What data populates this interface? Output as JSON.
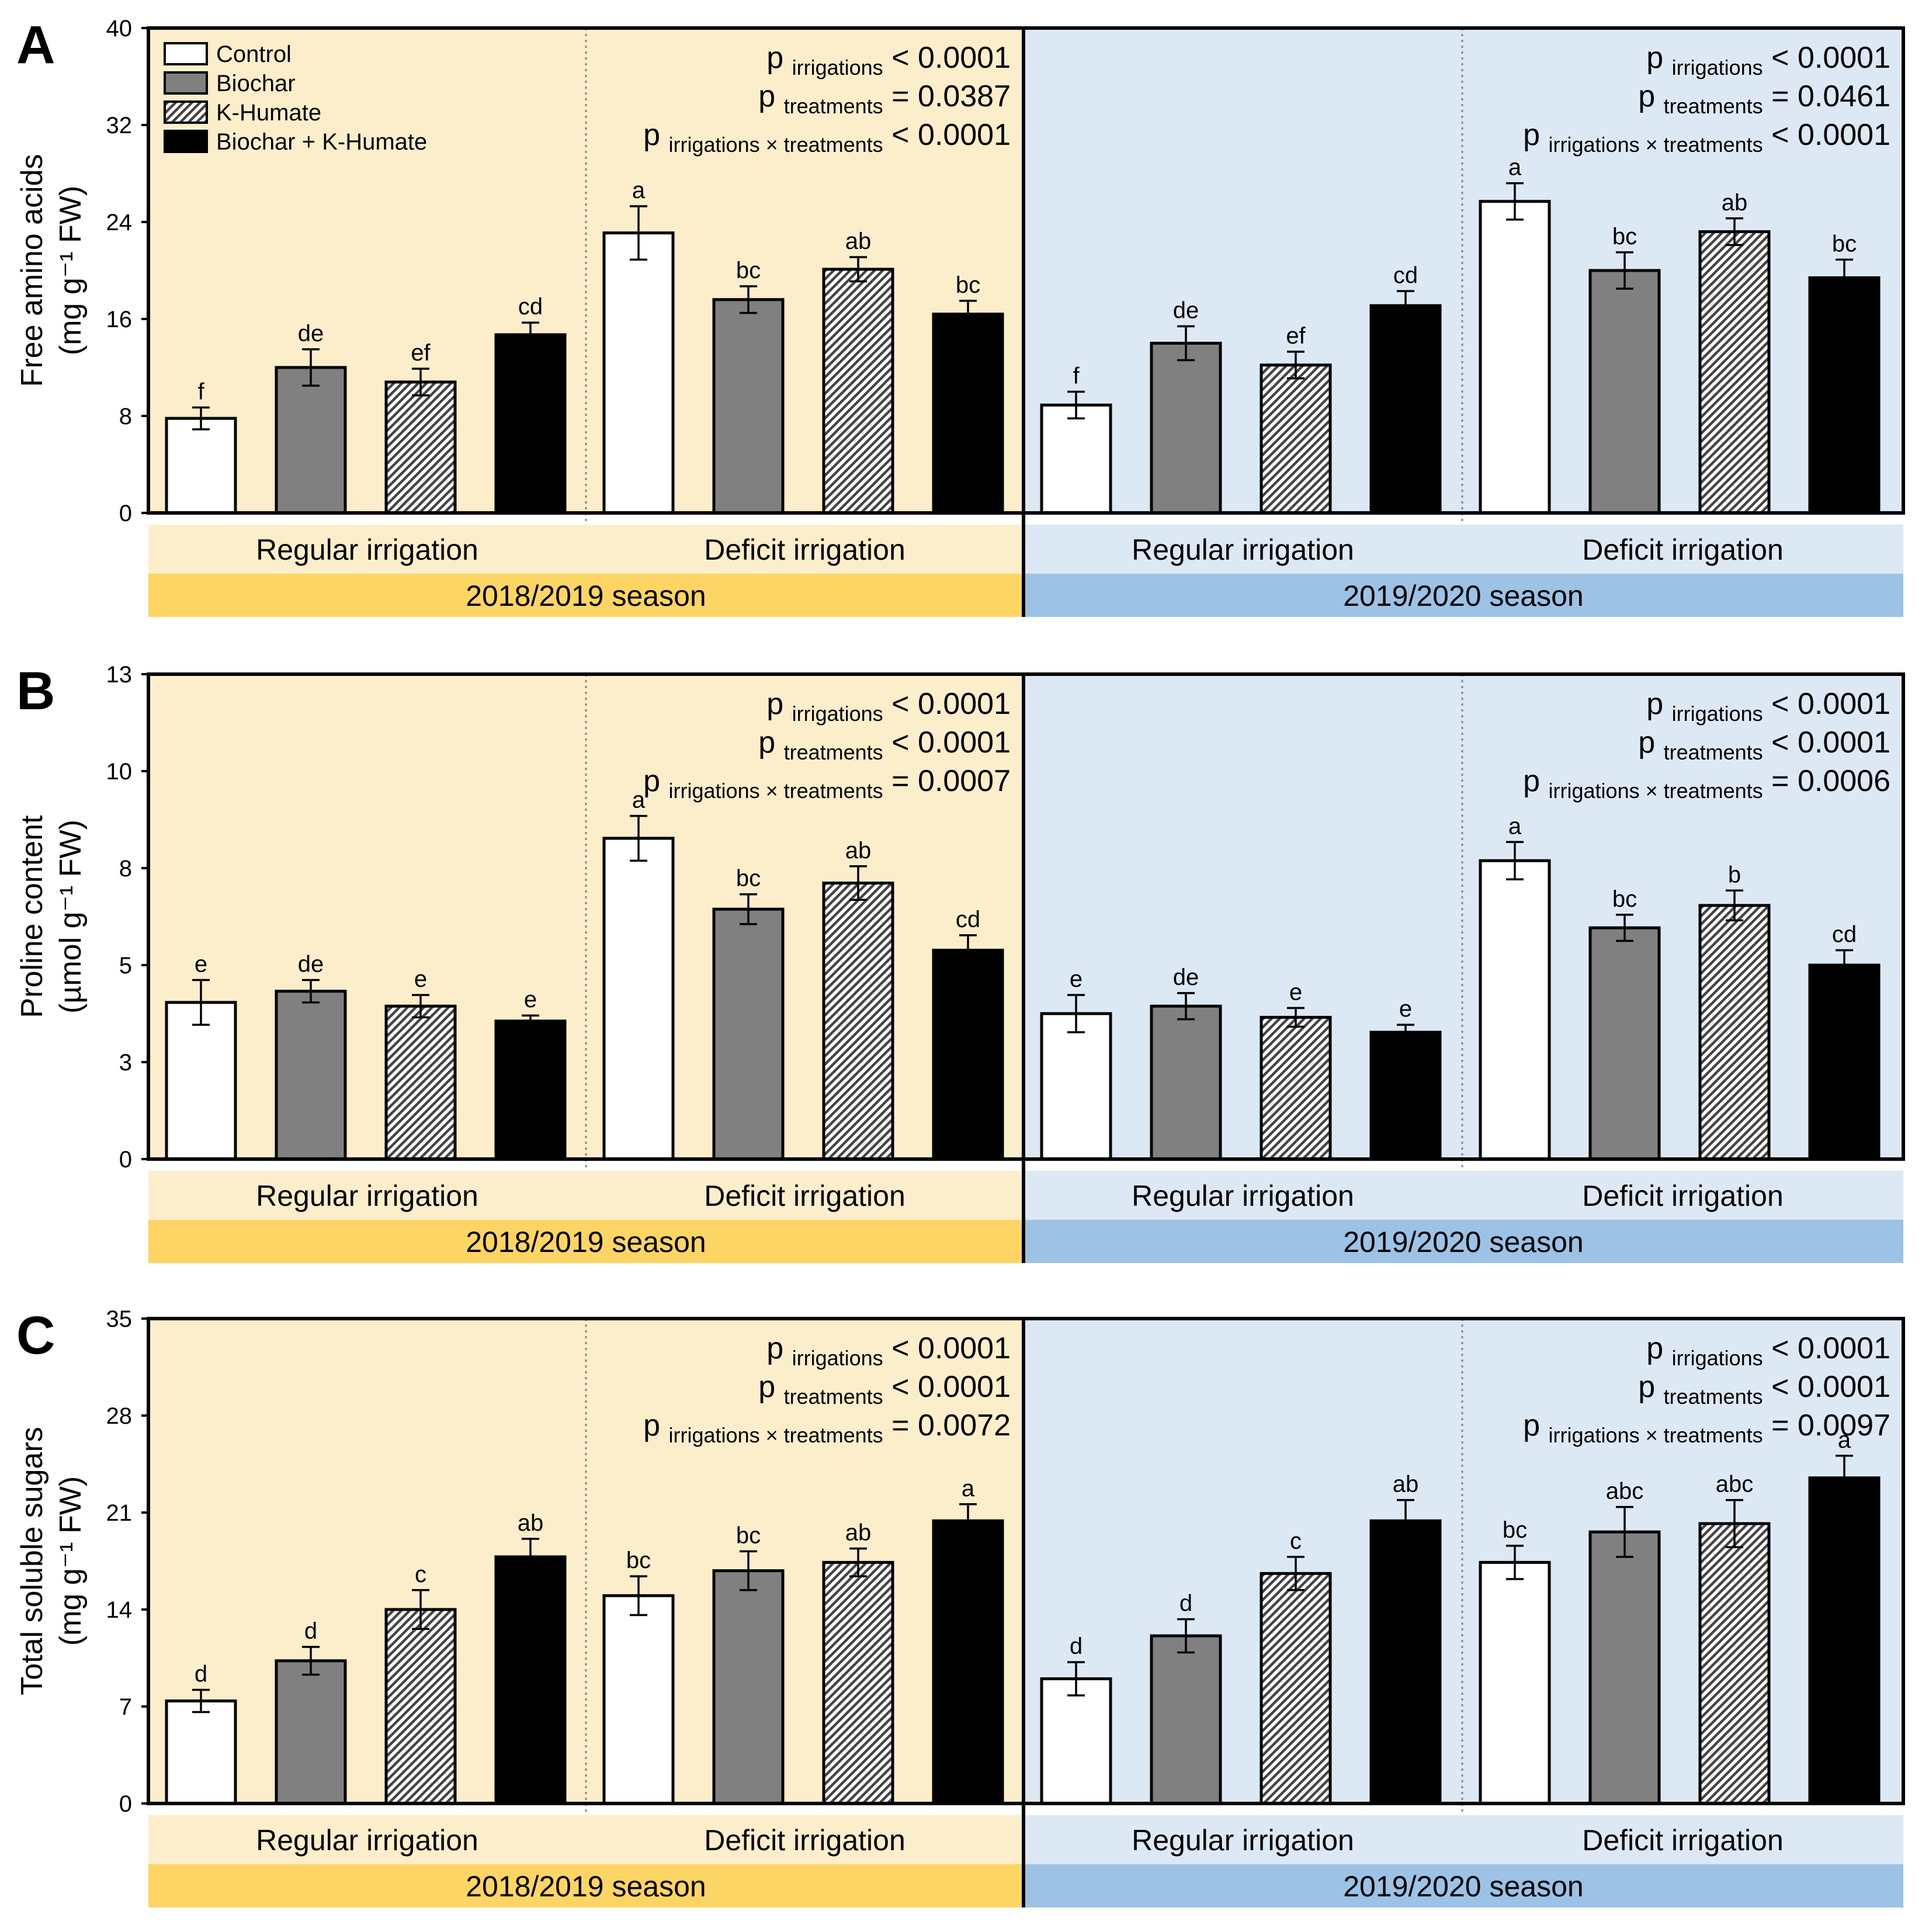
{
  "colors": {
    "season1_light": "#fdeecb",
    "season1_dark": "#fdd565",
    "season2_light": "#dde8f5",
    "season2_dark": "#9cc2e6",
    "control": "#ffffff",
    "biochar": "#808080",
    "khumate_hatch": "#444444",
    "biochar_khumate": "#000000"
  },
  "legend": {
    "control": "Control",
    "biochar": "Biochar",
    "khumate": "K-Humate",
    "biochar_khumate": "Biochar + K-Humate"
  },
  "labels": {
    "regular": "Regular irrigation",
    "deficit": "Deficit irrigation",
    "season1": "2018/2019 season",
    "season2": "2019/2020 season",
    "p_main": "p",
    "sub_irr": "irrigations",
    "sub_trt": "treatments",
    "sub_int": "irrigations × treatments"
  },
  "chart_data": [
    {
      "type": "bar",
      "panel": "A",
      "ylabel_line1": "Free amino acids",
      "ylabel_line2": "(mg g⁻¹ FW)",
      "ylim": [
        0,
        40
      ],
      "yticks": [
        "0",
        "8",
        "16",
        "24",
        "32",
        "40"
      ],
      "categories": [
        "Control",
        "Biochar",
        "K-Humate",
        "Biochar + K-Humate"
      ],
      "groups": [
        "2018/2019 Regular irrigation",
        "2018/2019 Deficit irrigation",
        "2019/2020 Regular irrigation",
        "2019/2020 Deficit irrigation"
      ],
      "values": [
        [
          7.8,
          12.0,
          10.8,
          14.7
        ],
        [
          23.1,
          17.6,
          20.1,
          16.4
        ],
        [
          8.9,
          14.0,
          12.2,
          17.1
        ],
        [
          25.7,
          20.0,
          23.2,
          19.4
        ]
      ],
      "errors": [
        [
          0.9,
          1.5,
          1.1,
          1.0
        ],
        [
          2.2,
          1.1,
          1.0,
          1.1
        ],
        [
          1.1,
          1.4,
          1.1,
          1.2
        ],
        [
          1.5,
          1.5,
          1.1,
          1.5
        ]
      ],
      "letters": [
        [
          "f",
          "de",
          "ef",
          "cd"
        ],
        [
          "a",
          "bc",
          "ab",
          "bc"
        ],
        [
          "f",
          "de",
          "ef",
          "cd"
        ],
        [
          "a",
          "bc",
          "ab",
          "bc"
        ]
      ],
      "pvalues": [
        [
          "< 0.0001",
          "= 0.0387",
          "< 0.0001"
        ],
        [
          "< 0.0001",
          "= 0.0461",
          "< 0.0001"
        ]
      ]
    },
    {
      "type": "bar",
      "panel": "B",
      "ylabel_line1": "Proline content",
      "ylabel_line2": "(µmol g⁻¹ FW)",
      "ylim": [
        0,
        13
      ],
      "yticks": [
        "0",
        "3",
        "5",
        "8",
        "10",
        "13"
      ],
      "categories": [
        "Control",
        "Biochar",
        "K-Humate",
        "Biochar + K-Humate"
      ],
      "groups": [
        "2018/2019 Regular irrigation",
        "2018/2019 Deficit irrigation",
        "2019/2020 Regular irrigation",
        "2019/2020 Deficit irrigation"
      ],
      "values": [
        [
          4.2,
          4.5,
          4.1,
          3.7
        ],
        [
          8.6,
          6.7,
          7.4,
          5.6
        ],
        [
          3.9,
          4.1,
          3.8,
          3.4
        ],
        [
          8.0,
          6.2,
          6.8,
          5.2
        ]
      ],
      "errors": [
        [
          0.6,
          0.3,
          0.3,
          0.15
        ],
        [
          0.6,
          0.4,
          0.45,
          0.4
        ],
        [
          0.5,
          0.35,
          0.25,
          0.2
        ],
        [
          0.5,
          0.35,
          0.4,
          0.4
        ]
      ],
      "letters": [
        [
          "e",
          "de",
          "e",
          "e"
        ],
        [
          "a",
          "bc",
          "ab",
          "cd"
        ],
        [
          "e",
          "de",
          "e",
          "e"
        ],
        [
          "a",
          "bc",
          "b",
          "cd"
        ]
      ],
      "pvalues": [
        [
          "< 0.0001",
          "< 0.0001",
          "= 0.0007"
        ],
        [
          "< 0.0001",
          "< 0.0001",
          "= 0.0006"
        ]
      ]
    },
    {
      "type": "bar",
      "panel": "C",
      "ylabel_line1": "Total soluble sugars",
      "ylabel_line2": "(mg g⁻¹ FW)",
      "ylim": [
        0,
        35
      ],
      "yticks": [
        "0",
        "7",
        "14",
        "21",
        "28",
        "35"
      ],
      "categories": [
        "Control",
        "Biochar",
        "K-Humate",
        "Biochar + K-Humate"
      ],
      "groups": [
        "2018/2019 Regular irrigation",
        "2018/2019 Deficit irrigation",
        "2019/2020 Regular irrigation",
        "2019/2020 Deficit irrigation"
      ],
      "values": [
        [
          7.4,
          10.3,
          14.0,
          17.8
        ],
        [
          15.0,
          16.8,
          17.4,
          20.4
        ],
        [
          9.0,
          12.1,
          16.6,
          20.4
        ],
        [
          17.4,
          19.6,
          20.2,
          23.5
        ]
      ],
      "errors": [
        [
          0.8,
          1.0,
          1.4,
          1.3
        ],
        [
          1.4,
          1.4,
          1.0,
          1.2
        ],
        [
          1.2,
          1.2,
          1.2,
          1.5
        ],
        [
          1.2,
          1.8,
          1.7,
          1.6
        ]
      ],
      "letters": [
        [
          "d",
          "d",
          "c",
          "ab"
        ],
        [
          "bc",
          "bc",
          "ab",
          "a"
        ],
        [
          "d",
          "d",
          "c",
          "ab"
        ],
        [
          "bc",
          "abc",
          "abc",
          "a"
        ]
      ],
      "pvalues": [
        [
          "< 0.0001",
          "< 0.0001",
          "= 0.0072"
        ],
        [
          "< 0.0001",
          "< 0.0001",
          "= 0.0097"
        ]
      ]
    }
  ]
}
